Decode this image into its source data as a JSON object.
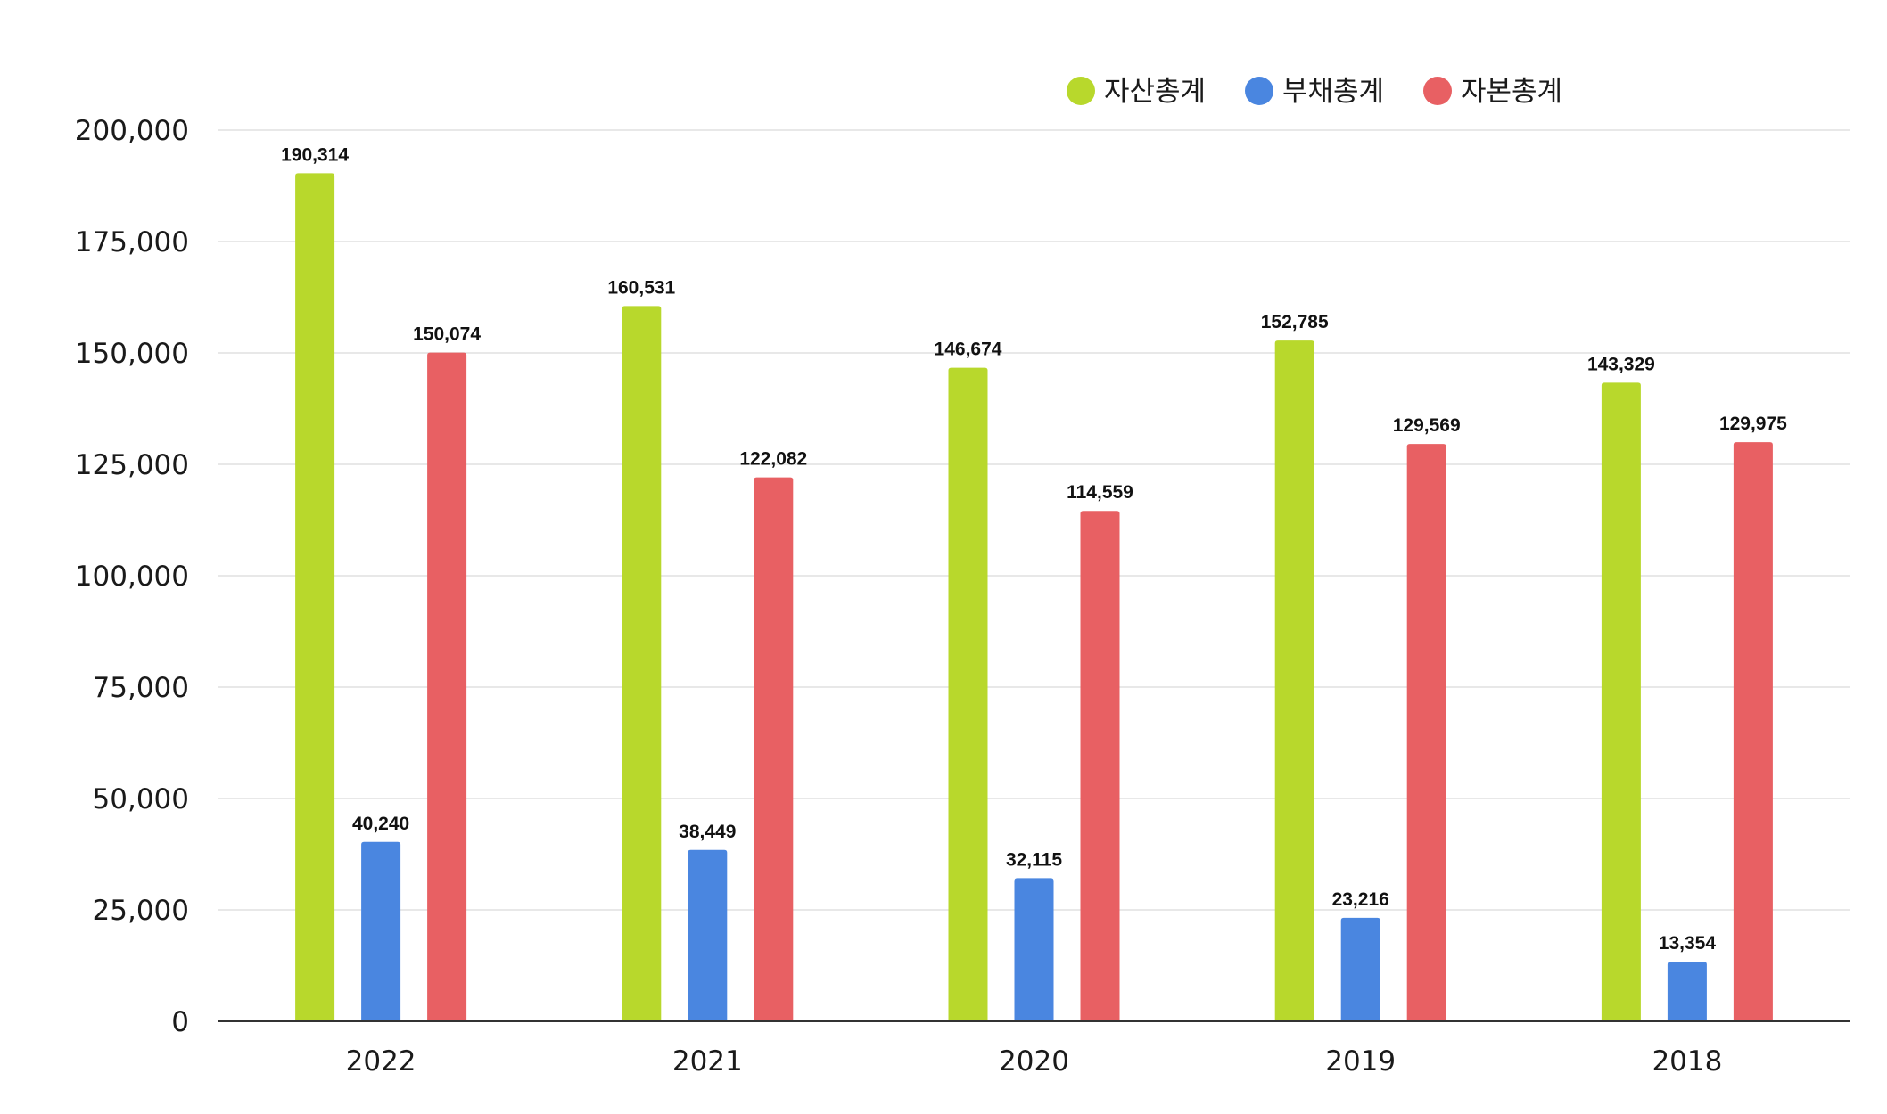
{
  "chart_data": {
    "type": "bar",
    "title": "",
    "xlabel": "",
    "ylabel": "",
    "categories": [
      "2022",
      "2021",
      "2020",
      "2019",
      "2018"
    ],
    "series": [
      {
        "name": "자산총계",
        "color": "#b8d82c",
        "values": [
          190314,
          160531,
          146674,
          152785,
          143329
        ],
        "labels": [
          "190,314",
          "160,531",
          "146,674",
          "152,785",
          "143,329"
        ]
      },
      {
        "name": "부채총계",
        "color": "#4a86e0",
        "values": [
          40240,
          38449,
          32115,
          23216,
          13354
        ],
        "labels": [
          "40,240",
          "38,449",
          "32,115",
          "23,216",
          "13,354"
        ]
      },
      {
        "name": "자본총계",
        "color": "#e86063",
        "values": [
          150074,
          122082,
          114559,
          129569,
          129975
        ],
        "labels": [
          "150,074",
          "122,082",
          "114,559",
          "129,569",
          "129,975"
        ]
      }
    ],
    "ylim": [
      0,
      200000
    ],
    "yticks": [
      0,
      25000,
      50000,
      75000,
      100000,
      125000,
      150000,
      175000,
      200000
    ],
    "ytick_labels": [
      "0",
      "25,000",
      "50,000",
      "75,000",
      "100,000",
      "125,000",
      "150,000",
      "175,000",
      "200,000"
    ],
    "grid": true,
    "legend_position": "top-right",
    "gridline_color": "#e0e0e0",
    "axis_color": "#333333"
  }
}
